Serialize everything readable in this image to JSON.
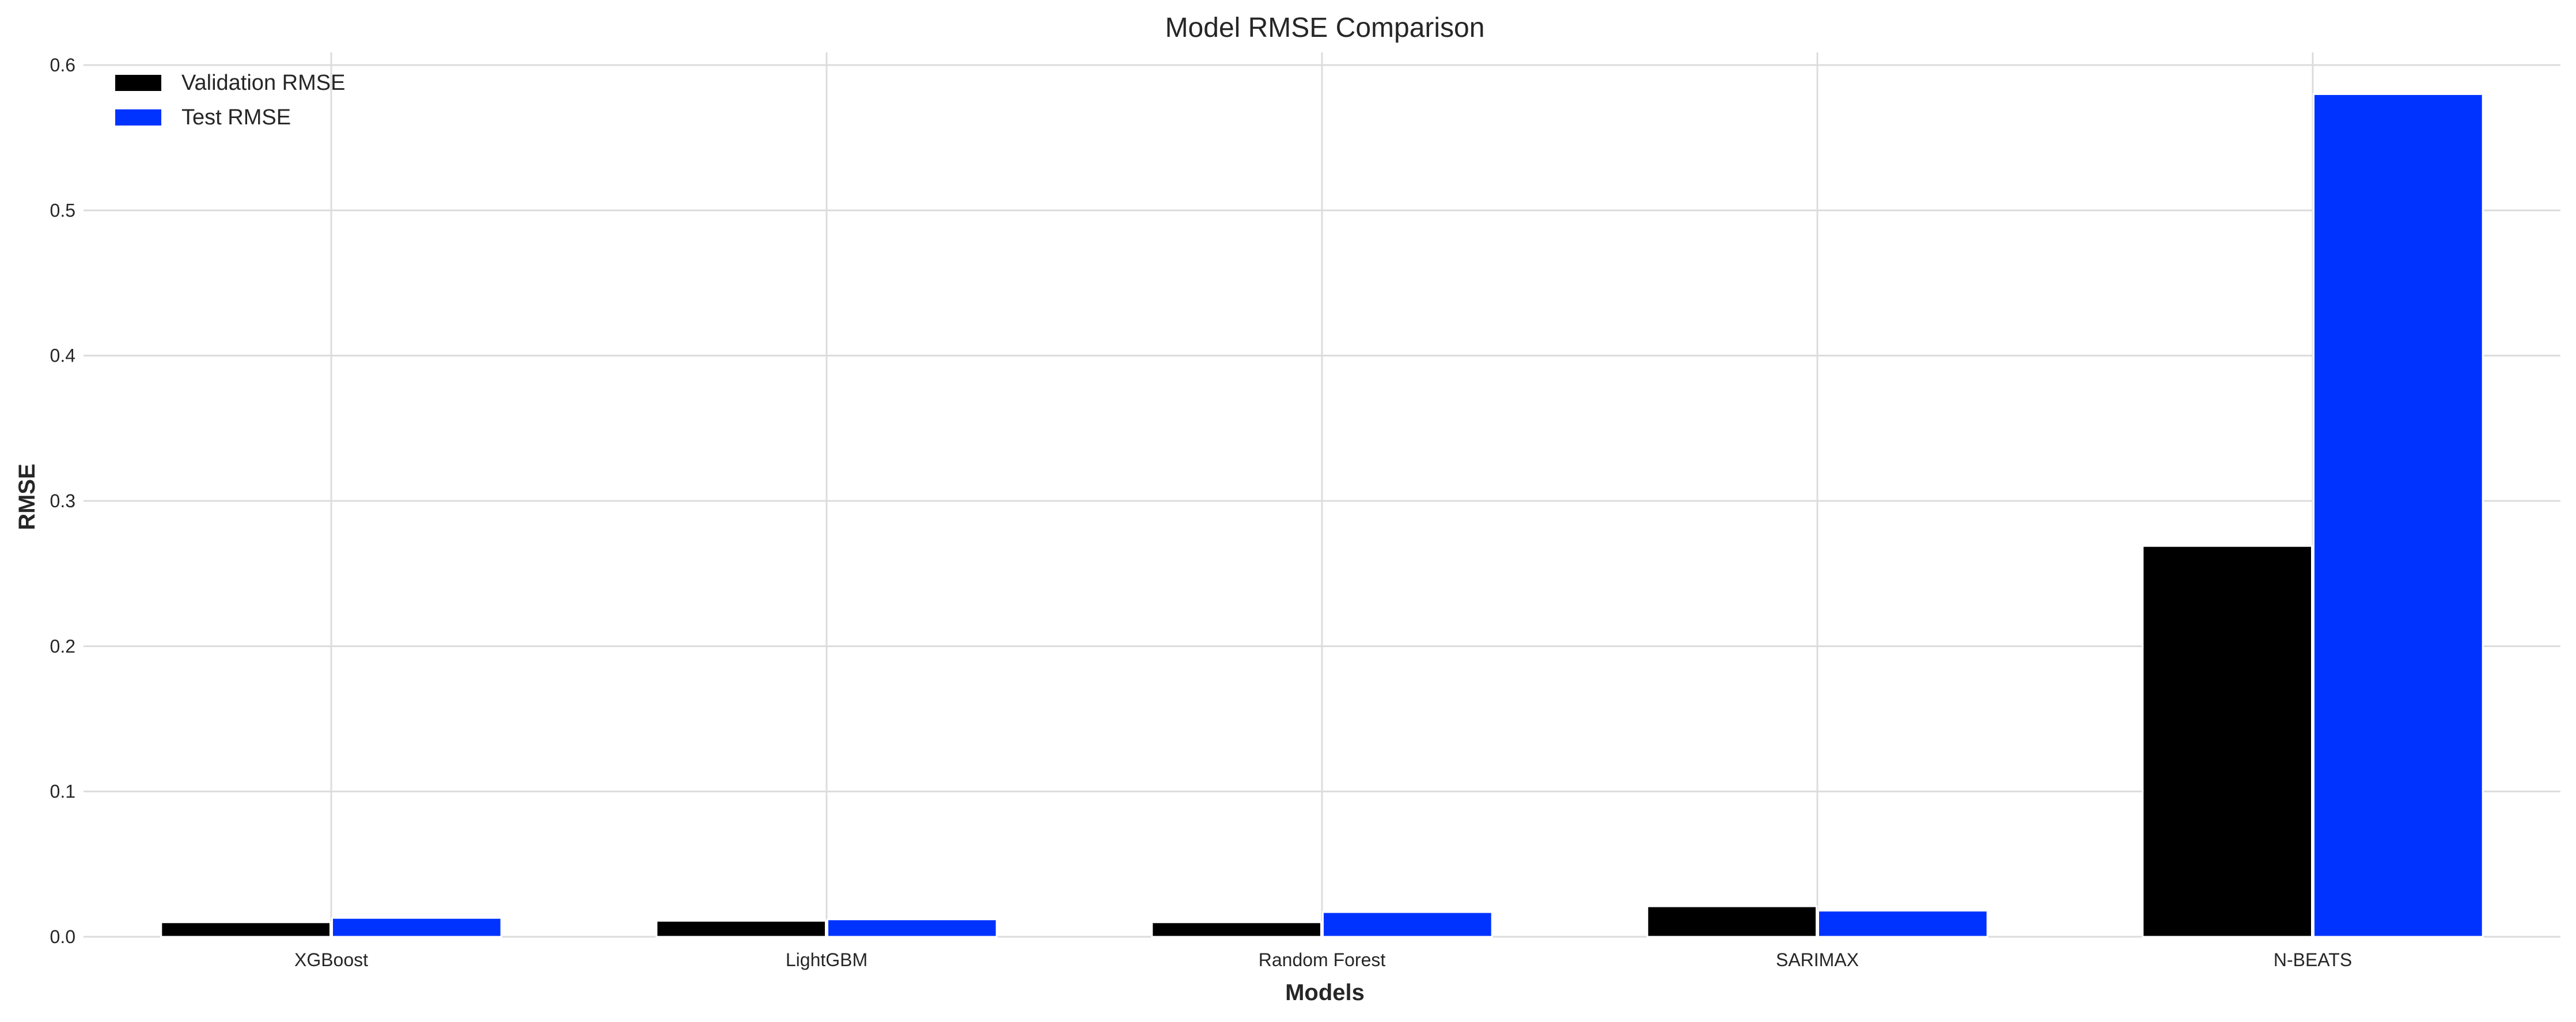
{
  "chart_data": {
    "type": "bar",
    "title": "Model RMSE Comparison",
    "xlabel": "Models",
    "ylabel": "RMSE",
    "categories": [
      "XGBoost",
      "LightGBM",
      "Random Forest",
      "SARIMAX",
      "N-BEATS"
    ],
    "series": [
      {
        "name": "Validation RMSE",
        "color": "#000000",
        "values": [
          0.01,
          0.011,
          0.01,
          0.021,
          0.269
        ]
      },
      {
        "name": "Test RMSE",
        "color": "#0033ff",
        "values": [
          0.013,
          0.012,
          0.017,
          0.018,
          0.58
        ]
      }
    ],
    "ylim": [
      0,
      0.6
    ],
    "yticks": [
      "0.0",
      "0.1",
      "0.2",
      "0.3",
      "0.4",
      "0.5",
      "0.6"
    ],
    "grid": true,
    "legend_position": "top-left"
  }
}
